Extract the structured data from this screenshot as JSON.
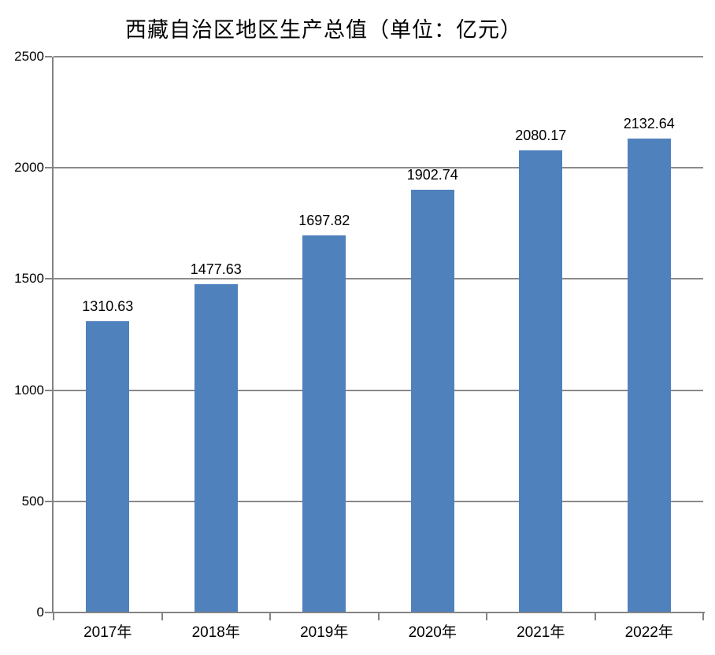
{
  "chart_data": {
    "type": "bar",
    "title": "西藏自治区地区生产总值（单位：亿元）",
    "categories": [
      "2017年",
      "2018年",
      "2019年",
      "2020年",
      "2021年",
      "2022年"
    ],
    "values": [
      1310.63,
      1477.63,
      1697.82,
      1902.74,
      2080.17,
      2132.64
    ],
    "data_labels": [
      "1310.63",
      "1477.63",
      "1697.82",
      "1902.74",
      "2080.17",
      "2132.64"
    ],
    "xlabel": "",
    "ylabel": "",
    "ylim": [
      0,
      2500
    ],
    "ytick_interval": 500,
    "ytick_labels": [
      "0",
      "500",
      "1000",
      "1500",
      "2000",
      "2500"
    ],
    "grid": "horizontal-only",
    "legend": "none",
    "colors": {
      "bar": "#4F81BD",
      "gridline": "#8A8A8A",
      "axis": "#848484",
      "text": "#000000",
      "background": "#FFFFFF"
    }
  }
}
